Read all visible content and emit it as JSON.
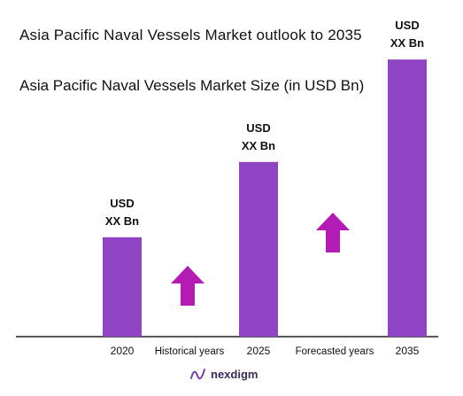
{
  "title": "Asia Pacific Naval Vessels Market outlook to 2035",
  "subtitle": "Asia Pacific Naval Vessels Market Size (in USD Bn)",
  "brand": {
    "name": "nexdigm",
    "icon": "nexdigm-logo-icon"
  },
  "colors": {
    "bar": "#8e44c3",
    "arrow": "#b41ab4",
    "axis": "#222222"
  },
  "chart_data": {
    "type": "bar",
    "categories": [
      "2020",
      "2025",
      "2035"
    ],
    "values": [
      0.33,
      0.58,
      0.92
    ],
    "value_note": "relative heights, actual values not disclosed",
    "ylim": [
      0,
      1
    ],
    "data_labels": [
      [
        "USD",
        "XX Bn"
      ],
      [
        "USD",
        "XX Bn"
      ],
      [
        "USD",
        "XX Bn"
      ]
    ],
    "between_labels": [
      "Historical years",
      "Forecasted years"
    ],
    "arrows": [
      "up",
      "up"
    ],
    "grid": false,
    "legend": "none"
  }
}
